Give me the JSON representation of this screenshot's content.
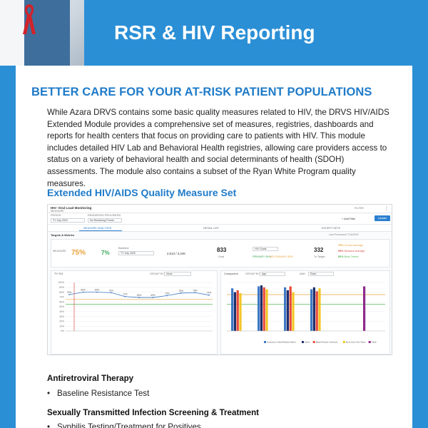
{
  "header": {
    "title": "RSR & HIV Reporting"
  },
  "lead_heading": "BETTER CARE FOR YOUR AT-RISK PATIENT POPULATIONS",
  "intro_paragraph": "While Azara DRVS contains some basic quality measures related to HIV, the DRVS HIV/AIDS Extended Module provides a comprehensive set of measures, registries, dashboards and reports for health centers that focus on providing care to patients with HIV. This module includes detailed HIV Lab and Behavioral Health registries, allowing care providers access to status on a variety of behavioral health and social determinants of health (SDOH) assessments. The module also contains a subset of the Ryan White Program quality measures.",
  "section_heading": "Extended HIV/AIDS Quality Measure Set",
  "dashboard": {
    "measure_title": "HIV: Viral Load Monitoring",
    "measure_sub": "MEASURE",
    "period_label": "PERIOD",
    "period_value": "TY July 2022",
    "provider_label": "RENDERING PROVIDERS",
    "provider_value": "No Rendering Provid...",
    "filter_label": "FILTER",
    "add_filter": "+ Add Filter",
    "update_button": "Update",
    "tabs": [
      "MEASURE ANALYZER",
      "DETAIL LIST",
      "EXCEPT SETS"
    ],
    "targets_label": "Targets & Metrics",
    "last_processed": "Last Processed 7/18/2022",
    "kpi_side_label": "MEASURE",
    "kpi_percent": "75%",
    "kpi_change": "7%",
    "baseline_label": "Baseline",
    "baseline_value": "TY July 2020",
    "ratio": "2,513 / 3,346",
    "goal_value": "833",
    "goal_label": "Goal",
    "hiv_toggle": "HIV Goals",
    "primary_label": "PRIMARY 55%",
    "secondary_label": "SECONDARY 65%",
    "target_value": "332",
    "target_label": "To Target",
    "bench": [
      {
        "value": "75%",
        "label": "Center Average",
        "color": "#e9a23b"
      },
      {
        "value": "55%",
        "label": "Network Average",
        "color": "#d9534f"
      },
      {
        "value": "85%",
        "label": "Best Center",
        "color": "#5cb85c"
      }
    ],
    "trend_panel_title": "TY Y21",
    "group_by_label": "GROUP BY",
    "group_by_value": "None",
    "component_label": "Component",
    "component_group_by": "GROUP BY",
    "component_group_value": "Age",
    "component_and": "AND",
    "component_and_value": "Race",
    "legend_items": [
      "American Indian/Alaska Native",
      "Asian",
      "Black/African American",
      "More than One Race",
      "Pacif..."
    ],
    "trend_y_ticks": [
      "100%",
      "90%",
      "80%",
      "70%",
      "60%",
      "50%",
      "40%",
      "30%",
      "20%",
      "10%",
      "0%"
    ],
    "trend_line_labels": [
      "75%",
      "80%",
      "80%",
      "79%",
      "71%",
      "69%",
      "69%",
      "73%",
      "78%",
      "79%",
      "74%"
    ],
    "bar_colors": [
      "#3f79c4",
      "#1e2f6b",
      "#e84a3c",
      "#f3c623",
      "#8e2a8c"
    ]
  },
  "chart_data": [
    {
      "type": "line",
      "title": "TY Y21",
      "ylim": [
        0,
        100
      ],
      "series": [
        {
          "name": "",
          "values": [
            75,
            80,
            80,
            79,
            71,
            69,
            69,
            73,
            78,
            79,
            74
          ]
        }
      ]
    },
    {
      "type": "bar",
      "title": "Component",
      "ylim": [
        0,
        100
      ],
      "series": [
        {
          "name": "American Indian/Alaska Native",
          "values": [
            88,
            92,
            90,
            86,
            0,
            0
          ]
        },
        {
          "name": "Asian",
          "values": [
            80,
            94,
            84,
            90,
            0,
            0
          ]
        },
        {
          "name": "Black/African American",
          "values": [
            84,
            90,
            92,
            82,
            0,
            0
          ]
        },
        {
          "name": "More than One Race",
          "values": [
            78,
            86,
            80,
            88,
            0,
            0
          ]
        },
        {
          "name": "Pacif...",
          "values": [
            0,
            0,
            0,
            0,
            0,
            92
          ]
        }
      ]
    }
  ],
  "list": [
    {
      "category": "Antiretroviral Therapy",
      "items": [
        "Baseline Resistance Test"
      ]
    },
    {
      "category": "Sexually Transmitted Infection Screening & Treatment",
      "items": [
        "Syphilis Testing/Treatment for Positives"
      ]
    }
  ]
}
